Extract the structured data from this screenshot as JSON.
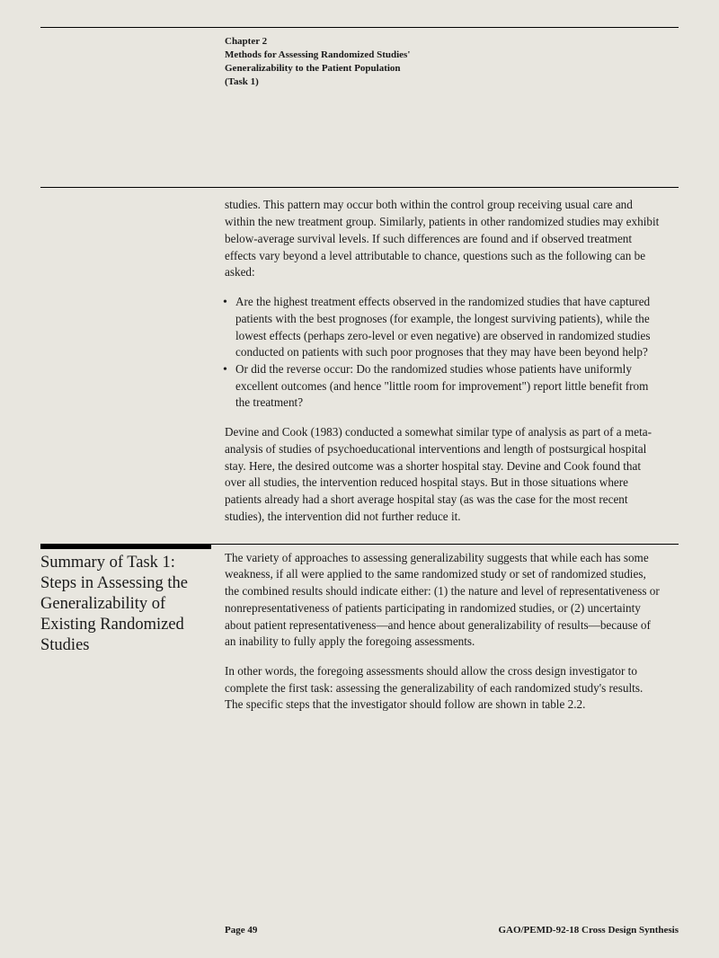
{
  "header": {
    "chapter": "Chapter 2",
    "title_line1": "Methods for Assessing Randomized Studies'",
    "title_line2": "Generalizability to the Patient Population",
    "task": "(Task 1)"
  },
  "body": {
    "para1": "studies. This pattern may occur both within the control group receiving usual care and within the new treatment group. Similarly, patients in other randomized studies may exhibit below-average survival levels. If such differences are found and if observed treatment effects vary beyond a level attributable to chance, questions such as the following can be asked:",
    "bullet1": "Are the highest treatment effects observed in the randomized studies that have captured patients with the best prognoses (for example, the longest surviving patients), while the lowest effects (perhaps zero-level or even negative) are observed in randomized studies conducted on patients with such poor prognoses that they may have been beyond help?",
    "bullet2": "Or did the reverse occur: Do the randomized studies whose patients have uniformly excellent outcomes (and hence \"little room for improvement\") report little benefit from the treatment?",
    "para2": "Devine and Cook (1983) conducted a somewhat similar type of analysis as part of a meta-analysis of studies of psychoeducational interventions and length of postsurgical hospital stay. Here, the desired outcome was a shorter hospital stay. Devine and Cook found that over all studies, the intervention reduced hospital stays. But in those situations where patients already had a short average hospital stay (as was the case for the most recent studies), the intervention did not further reduce it."
  },
  "section": {
    "heading": "Summary of Task 1: Steps in Assessing the Generalizability of Existing Randomized Studies",
    "para1": "The variety of approaches to assessing generalizability suggests that while each has some weakness, if all were applied to the same randomized study or set of randomized studies, the combined results should indicate either: (1) the nature and level of representativeness or nonrepresentativeness of patients participating in randomized studies, or (2) uncertainty about patient representativeness—and hence about generalizability of results—because of an inability to fully apply the foregoing assessments.",
    "para2": "In other words, the foregoing assessments should allow the cross design investigator to complete the first task: assessing the generalizability of each randomized study's results. The specific steps that the investigator should follow are shown in table 2.2."
  },
  "footer": {
    "page": "Page 49",
    "ref": "GAO/PEMD-92-18 Cross Design Synthesis"
  }
}
